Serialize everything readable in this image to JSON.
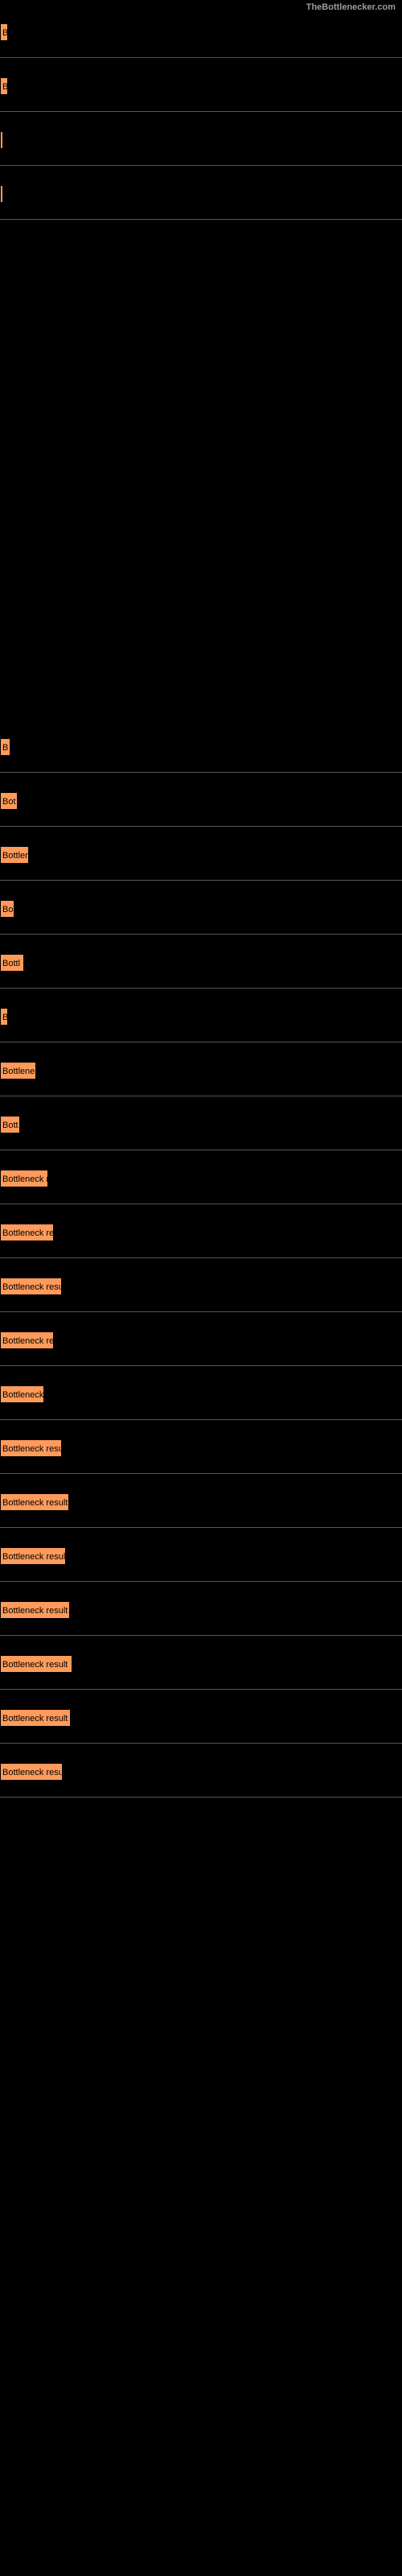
{
  "site": {
    "title": "TheBottlenecker.com"
  },
  "chart": {
    "type": "bar",
    "bar_color": "#ff9b5a",
    "bar_border": "#000000",
    "background_color": "#000000",
    "text_color": "#000000",
    "site_text_color": "#9c9c9c",
    "full_width_value": 500,
    "bars": [
      {
        "label": "B",
        "width": 10
      },
      {
        "label": "B",
        "width": 10
      },
      {
        "label": "",
        "width": 3
      },
      {
        "label": "",
        "width": 3
      },
      {
        "label": "B",
        "width": 13
      },
      {
        "label": "Bot",
        "width": 22
      },
      {
        "label": "Bottlen",
        "width": 36
      },
      {
        "label": "Bo",
        "width": 18
      },
      {
        "label": "Bottl",
        "width": 30
      },
      {
        "label": "B",
        "width": 10
      },
      {
        "label": "Bottlene",
        "width": 45
      },
      {
        "label": "Bott",
        "width": 25
      },
      {
        "label": "Bottleneck r",
        "width": 60
      },
      {
        "label": "Bottleneck re",
        "width": 67
      },
      {
        "label": "Bottleneck resu",
        "width": 77
      },
      {
        "label": "Bottleneck re",
        "width": 67
      },
      {
        "label": "Bottleneck",
        "width": 55
      },
      {
        "label": "Bottleneck resu",
        "width": 77
      },
      {
        "label": "Bottleneck result",
        "width": 86
      },
      {
        "label": "Bottleneck resul",
        "width": 82
      },
      {
        "label": "Bottleneck result",
        "width": 87
      },
      {
        "label": "Bottleneck result",
        "width": 90
      },
      {
        "label": "Bottleneck result",
        "width": 88
      },
      {
        "label": "Bottleneck resu",
        "width": 78
      }
    ],
    "gap_after_index": 3,
    "gap_height": 620
  }
}
